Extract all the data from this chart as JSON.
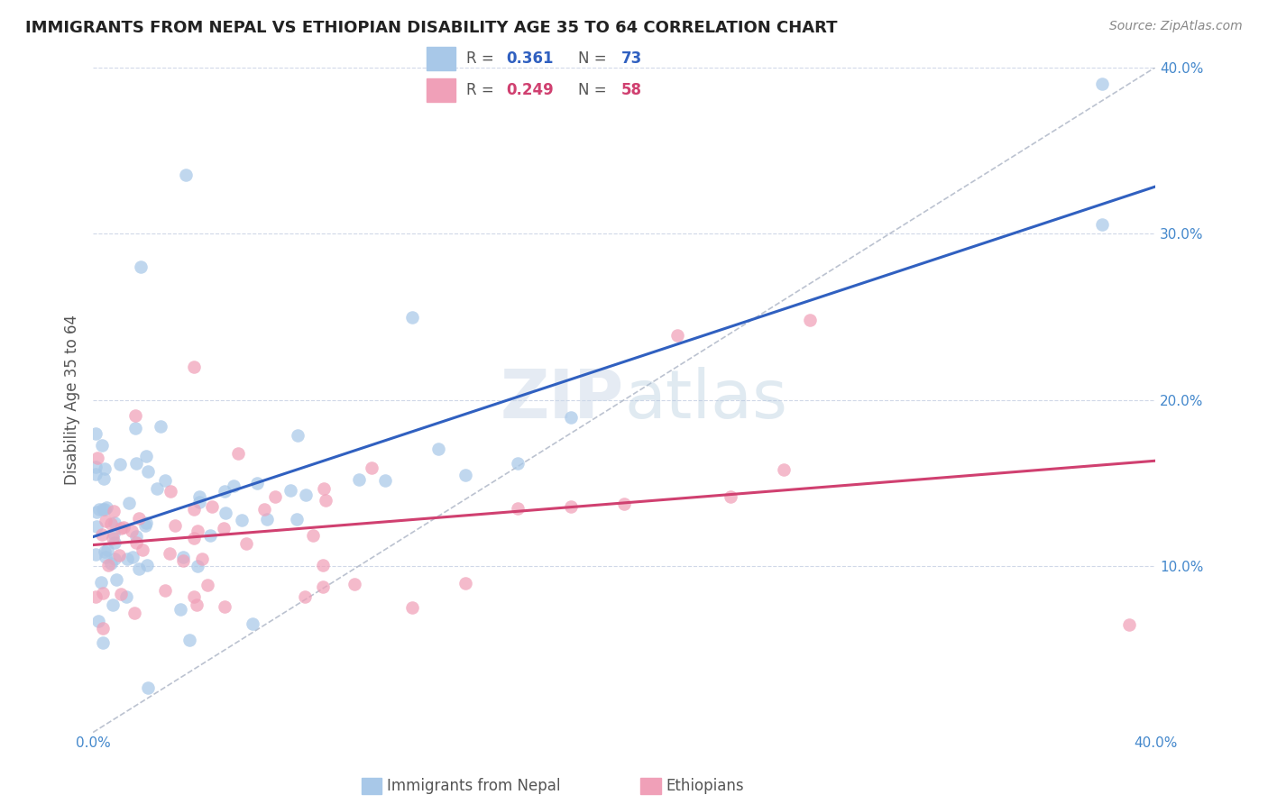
{
  "title": "IMMIGRANTS FROM NEPAL VS ETHIOPIAN DISABILITY AGE 35 TO 64 CORRELATION CHART",
  "source": "Source: ZipAtlas.com",
  "ylabel": "Disability Age 35 to 64",
  "xlim": [
    0.0,
    0.4
  ],
  "ylim": [
    0.0,
    0.4
  ],
  "nepal_R": 0.361,
  "nepal_N": 73,
  "ethiopia_R": 0.249,
  "ethiopia_N": 58,
  "nepal_color": "#a8c8e8",
  "nepal_line_color": "#3060c0",
  "ethiopia_color": "#f0a0b8",
  "ethiopia_line_color": "#d04070",
  "diagonal_color": "#b0b8c8",
  "background_color": "#ffffff",
  "grid_color": "#d0d8e8"
}
